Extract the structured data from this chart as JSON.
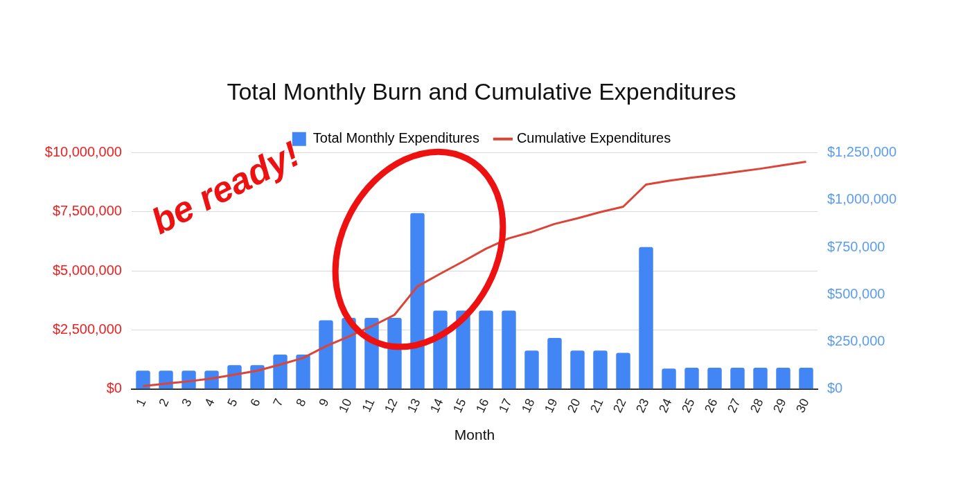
{
  "chart_data": {
    "type": "bar",
    "title": "Total Monthly Burn and Cumulative Expenditures",
    "xlabel": "Month",
    "categories": [
      "1",
      "2",
      "3",
      "4",
      "5",
      "6",
      "7",
      "8",
      "9",
      "10",
      "11",
      "12",
      "13",
      "14",
      "15",
      "16",
      "17",
      "18",
      "19",
      "20",
      "21",
      "22",
      "23",
      "24",
      "25",
      "26",
      "27",
      "28",
      "29",
      "30"
    ],
    "series": [
      {
        "name": "Total Monthly Expenditures",
        "axis": "y2",
        "color": "#4285f4",
        "values": [
          96000,
          96000,
          96000,
          96000,
          126000,
          126000,
          182000,
          182000,
          363000,
          376000,
          376000,
          376000,
          931000,
          415000,
          415000,
          415000,
          415000,
          203000,
          270000,
          203000,
          203000,
          191000,
          751000,
          107000,
          112000,
          112000,
          112000,
          112000,
          112000,
          112000
        ]
      },
      {
        "name": "Cumulative Expenditures",
        "type": "line",
        "axis": "y",
        "color": "#db4437",
        "values": [
          120000,
          220000,
          320000,
          440000,
          600000,
          770000,
          1030000,
          1310000,
          1810000,
          2220000,
          2650000,
          3140000,
          4340000,
          4880000,
          5400000,
          5940000,
          6380000,
          6650000,
          6990000,
          7230000,
          7490000,
          7720000,
          8660000,
          8820000,
          8950000,
          9070000,
          9200000,
          9330000,
          9480000,
          9630000
        ]
      }
    ],
    "ylim": [
      0,
      10000000
    ],
    "yticks": [
      {
        "value": 0,
        "label": "$0"
      },
      {
        "value": 2500000,
        "label": "$2,500,000"
      },
      {
        "value": 5000000,
        "label": "$5,000,000"
      },
      {
        "value": 7500000,
        "label": "$7,500,000"
      },
      {
        "value": 10000000,
        "label": "$10,000,000"
      }
    ],
    "y2lim": [
      0,
      1250000
    ],
    "y2ticks": [
      {
        "value": 0,
        "label": "$0"
      },
      {
        "value": 250000,
        "label": "$250,000"
      },
      {
        "value": 500000,
        "label": "$500,000"
      },
      {
        "value": 750000,
        "label": "$750,000"
      },
      {
        "value": 1000000,
        "label": "$1,000,000"
      },
      {
        "value": 1250000,
        "label": "$1,250,000"
      }
    ],
    "grid": "y",
    "legend": "top",
    "marker": "none",
    "line_style": "solid",
    "annotations": [
      "be ready!"
    ]
  }
}
